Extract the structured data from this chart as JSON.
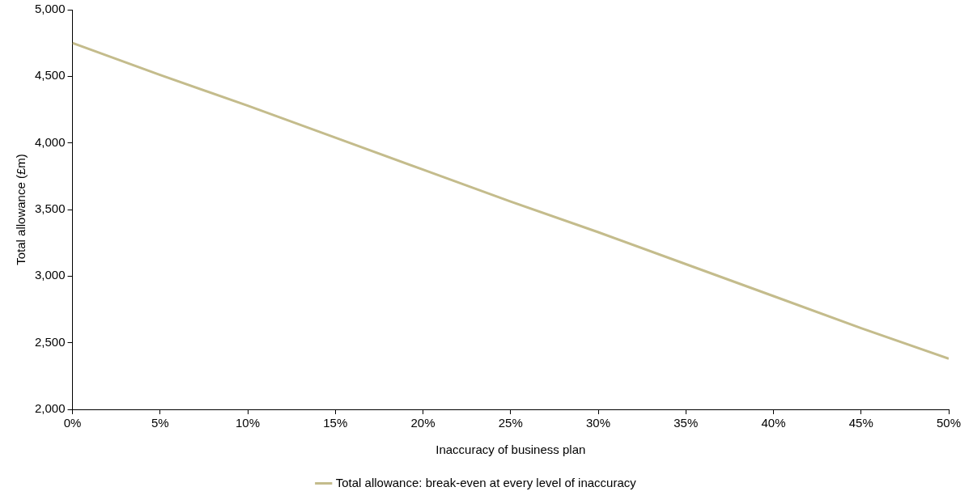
{
  "chart_data": {
    "type": "line",
    "xlabel": "Inaccuracy of business plan",
    "ylabel": "Total allowance (£m)",
    "x": [
      0,
      5,
      10,
      15,
      20,
      25,
      30,
      35,
      40,
      45,
      50
    ],
    "series": [
      {
        "name": "Total allowance: break-even at every level of inaccuracy",
        "color": "#c4bc8c",
        "values": [
          4750,
          4510,
          4280,
          4040,
          3800,
          3560,
          3330,
          3090,
          2850,
          2610,
          2380
        ]
      }
    ],
    "xlim": [
      0,
      50
    ],
    "xticks": [
      {
        "value": 0,
        "label": "0%"
      },
      {
        "value": 5,
        "label": "5%"
      },
      {
        "value": 10,
        "label": "10%"
      },
      {
        "value": 15,
        "label": "15%"
      },
      {
        "value": 20,
        "label": "20%"
      },
      {
        "value": 25,
        "label": "25%"
      },
      {
        "value": 30,
        "label": "30%"
      },
      {
        "value": 35,
        "label": "35%"
      },
      {
        "value": 40,
        "label": "40%"
      },
      {
        "value": 45,
        "label": "45%"
      },
      {
        "value": 50,
        "label": "50%"
      }
    ],
    "ylim": [
      2000,
      5000
    ],
    "yticks": [
      {
        "value": 2000,
        "label": "2,000"
      },
      {
        "value": 2500,
        "label": "2,500"
      },
      {
        "value": 3000,
        "label": "3,000"
      },
      {
        "value": 3500,
        "label": "3,500"
      },
      {
        "value": 4000,
        "label": "4,000"
      },
      {
        "value": 4500,
        "label": "4,500"
      },
      {
        "value": 5000,
        "label": "5,000"
      }
    ],
    "legend": "bottom",
    "marker": "none",
    "line_style": "solid",
    "grid": false
  }
}
